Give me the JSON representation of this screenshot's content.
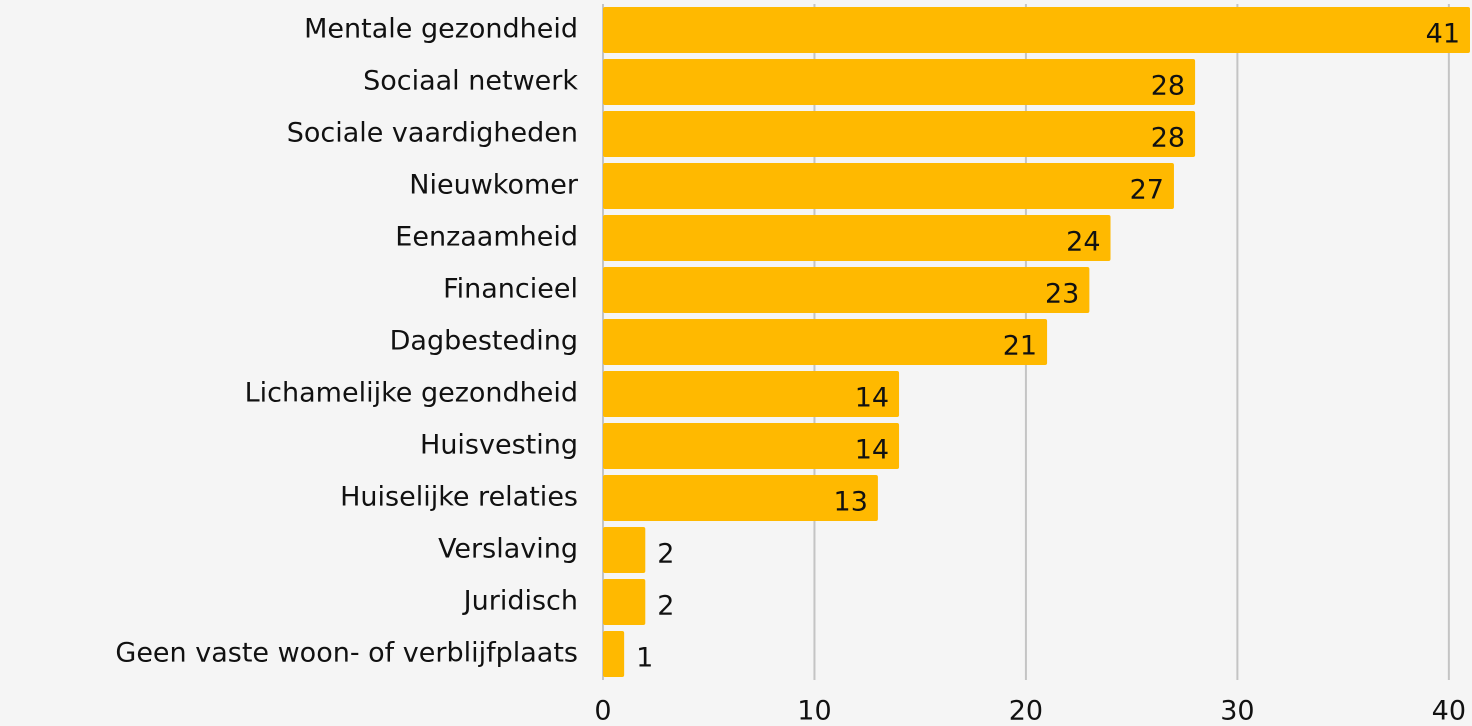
{
  "chart_data": {
    "type": "bar",
    "orientation": "horizontal",
    "categories": [
      "Mentale gezondheid",
      "Sociaal netwerk",
      "Sociale vaardigheden",
      "Nieuwkomer",
      "Eenzaamheid",
      "Financieel",
      "Dagbesteding",
      "Lichamelijke gezondheid",
      "Huisvesting",
      "Huiselijke relaties",
      "Verslaving",
      "Juridisch",
      "Geen vaste woon- of verblijfplaats"
    ],
    "values": [
      41,
      28,
      28,
      27,
      24,
      23,
      21,
      14,
      14,
      13,
      2,
      2,
      1
    ],
    "color": "#ffb900",
    "xlim": [
      0,
      41
    ],
    "xticks": [
      0,
      10,
      20,
      30,
      40
    ],
    "grid": true
  }
}
